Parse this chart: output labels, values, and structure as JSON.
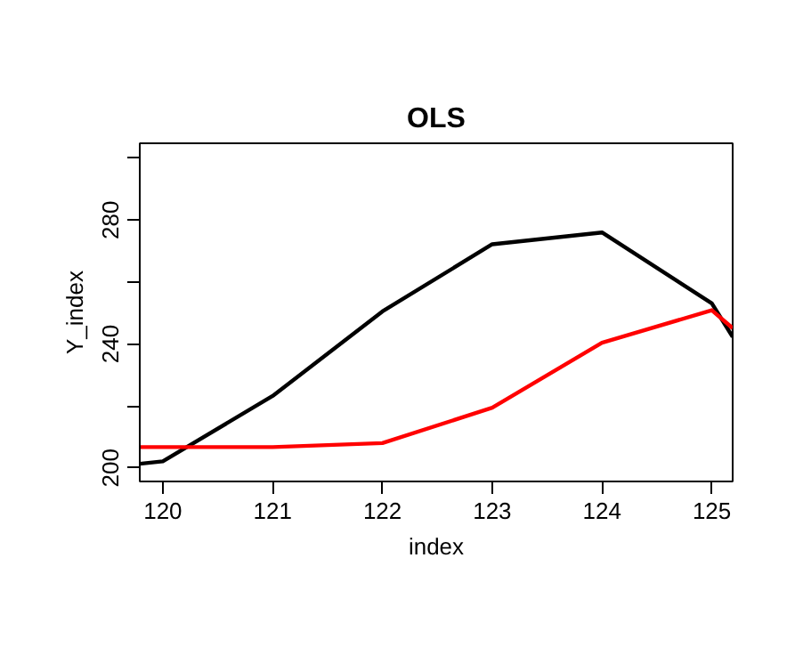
{
  "chart_data": {
    "type": "line",
    "title": "OLS",
    "xlabel": "index",
    "ylabel": "Y_index",
    "xlim": [
      119.79,
      125.19
    ],
    "ylim": [
      195.6,
      304.8
    ],
    "xticks": [
      120,
      121,
      122,
      123,
      124,
      125
    ],
    "yticks": [
      200,
      {
        "value": 220,
        "label": null
      },
      240,
      {
        "value": 260,
        "label": null
      },
      280,
      {
        "value": 300,
        "label": null
      }
    ],
    "grid": false,
    "marker": "none",
    "line_style": "solid",
    "series": [
      {
        "color": "#000000",
        "x": [
          119.79,
          120,
          121,
          122,
          123,
          124,
          125,
          125.19
        ],
        "values": [
          201.3,
          202.1,
          223.2,
          250.5,
          272.2,
          276,
          253.1,
          242.3
        ]
      },
      {
        "color": "#ff0000",
        "x": [
          119.79,
          121,
          122,
          123,
          124,
          125,
          125.19
        ],
        "values": [
          206.7,
          206.7,
          208,
          219.4,
          240.4,
          250.9,
          245.1
        ]
      }
    ]
  }
}
